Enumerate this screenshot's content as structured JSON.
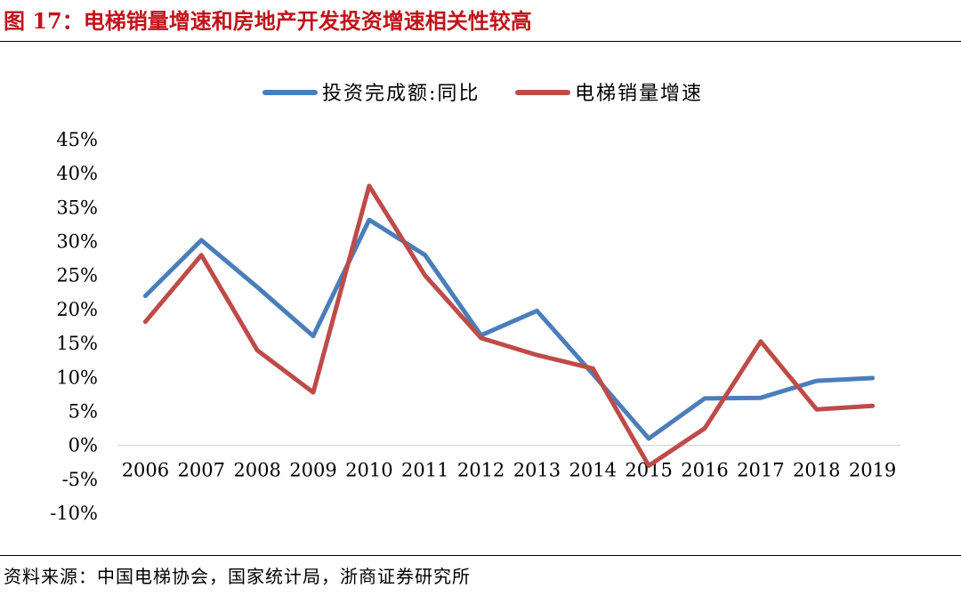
{
  "figure_title": "图 17：电梯销量增速和房地产开发投资增速相关性较高",
  "source": "资料来源：中国电梯协会，国家统计局，浙商证券研究所",
  "colors": {
    "title": "#c0141b",
    "series_blue": "#4a7ebb",
    "series_red": "#be4b48",
    "axis": "#d9d9d9"
  },
  "chart_data": {
    "type": "line",
    "title": "",
    "xlabel": "",
    "ylabel": "",
    "x": [
      "2006",
      "2007",
      "2008",
      "2009",
      "2010",
      "2011",
      "2012",
      "2013",
      "2014",
      "2015",
      "2016",
      "2017",
      "2018",
      "2019"
    ],
    "y_ticks": [
      "45%",
      "40%",
      "35%",
      "30%",
      "25%",
      "20%",
      "15%",
      "10%",
      "5%",
      "0%",
      "-5%",
      "-10%"
    ],
    "ylim": [
      -10,
      45
    ],
    "y_unit": "%",
    "grid": false,
    "legend_position": "top",
    "series": [
      {
        "name": "投资完成额:同比",
        "color": "#4a7ebb",
        "values": [
          22.0,
          30.2,
          23.3,
          16.1,
          33.2,
          28.0,
          16.2,
          19.8,
          10.5,
          1.0,
          6.9,
          7.0,
          9.5,
          9.9
        ]
      },
      {
        "name": "电梯销量增速",
        "color": "#be4b48",
        "values": [
          18.2,
          28.0,
          14.0,
          7.8,
          38.2,
          25.0,
          15.8,
          13.3,
          11.3,
          -3.0,
          2.5,
          15.3,
          5.3,
          5.8
        ]
      }
    ]
  }
}
